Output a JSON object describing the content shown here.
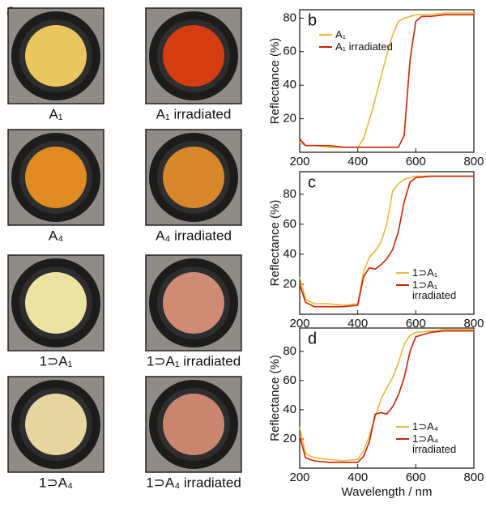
{
  "photo_panel": {
    "label": "a",
    "samples": [
      {
        "label": "A₁",
        "color": "#e9c75e"
      },
      {
        "label": "A₁ irradiated",
        "color": "#d63c12"
      },
      {
        "label": "A₄",
        "color": "#e08b22"
      },
      {
        "label": "A₄ irradiated",
        "color": "#d6872a"
      },
      {
        "label": "1⊃A₁",
        "color": "#ece2a2"
      },
      {
        "label": "1⊃A₁ irradiated",
        "color": "#cf8b74"
      },
      {
        "label": "1⊃A₄",
        "color": "#e8d6a2"
      },
      {
        "label": "1⊃A₄ irradiated",
        "color": "#c9866f"
      }
    ]
  },
  "chart_data": [
    {
      "type": "line",
      "panel_label": "b",
      "y_label": "Reflectance (%)",
      "legend": "upper left",
      "x": [
        200,
        220,
        250,
        300,
        350,
        400,
        420,
        450,
        480,
        500,
        520,
        540,
        560,
        580,
        600,
        620,
        650,
        700,
        750,
        800
      ],
      "xlim": [
        200,
        800
      ],
      "xticks": [
        200,
        400,
        600,
        800
      ],
      "ylim": [
        0,
        85
      ],
      "yticks": [
        20,
        40,
        60,
        80
      ],
      "series": [
        {
          "name": "A₁",
          "color": "#e8b83a",
          "values": [
            6,
            4,
            4,
            3,
            3,
            3,
            8,
            25,
            45,
            58,
            70,
            78,
            80,
            81,
            82,
            82,
            82,
            83,
            83,
            83
          ]
        },
        {
          "name": "A₁ irradiated",
          "color": "#cc2200",
          "values": [
            8,
            4,
            4,
            4,
            3,
            3,
            3,
            3,
            3,
            3,
            3,
            3,
            10,
            55,
            78,
            81,
            81,
            82,
            82,
            82
          ]
        }
      ]
    },
    {
      "type": "line",
      "panel_label": "c",
      "y_label": "Reflectance (%)",
      "legend": "lower right",
      "x": [
        200,
        220,
        250,
        300,
        350,
        400,
        420,
        440,
        460,
        480,
        500,
        520,
        540,
        560,
        580,
        600,
        650,
        700,
        750,
        800
      ],
      "xlim": [
        200,
        800
      ],
      "xticks": [
        200,
        400,
        600,
        800
      ],
      "ylim": [
        0,
        95
      ],
      "yticks": [
        20,
        40,
        60,
        80
      ],
      "series": [
        {
          "name": "1⊃A₁",
          "color": "#e8b83a",
          "values": [
            25,
            10,
            7,
            7,
            6,
            7,
            28,
            38,
            42,
            48,
            60,
            82,
            87,
            90,
            91,
            92,
            92,
            92,
            92,
            92
          ]
        },
        {
          "name": "1⊃A₁ irradiated",
          "color": "#cc2200",
          "values": [
            20,
            8,
            5,
            5,
            5,
            6,
            25,
            31,
            30,
            33,
            37,
            43,
            55,
            75,
            88,
            91,
            92,
            92,
            92,
            92
          ]
        }
      ]
    },
    {
      "type": "line",
      "panel_label": "d",
      "y_label": "Reflectance (%)",
      "x_label": "Wavelength / nm",
      "legend": "lower right",
      "x": [
        200,
        220,
        250,
        300,
        350,
        400,
        420,
        440,
        460,
        480,
        500,
        520,
        540,
        560,
        580,
        600,
        650,
        700,
        750,
        800
      ],
      "xlim": [
        200,
        800
      ],
      "xticks": [
        200,
        400,
        600,
        800
      ],
      "ylim": [
        0,
        96
      ],
      "yticks": [
        20,
        40,
        60,
        80
      ],
      "series": [
        {
          "name": "1⊃A₄",
          "color": "#e8b83a",
          "values": [
            28,
            10,
            7,
            6,
            5,
            6,
            12,
            22,
            35,
            47,
            55,
            62,
            72,
            85,
            91,
            93,
            94,
            95,
            95,
            95
          ]
        },
        {
          "name": "1⊃A₄ irradiated",
          "color": "#cc2200",
          "values": [
            22,
            7,
            5,
            4,
            4,
            4,
            8,
            18,
            37,
            38,
            37,
            42,
            50,
            62,
            80,
            90,
            93,
            94,
            94,
            94
          ]
        }
      ]
    }
  ]
}
